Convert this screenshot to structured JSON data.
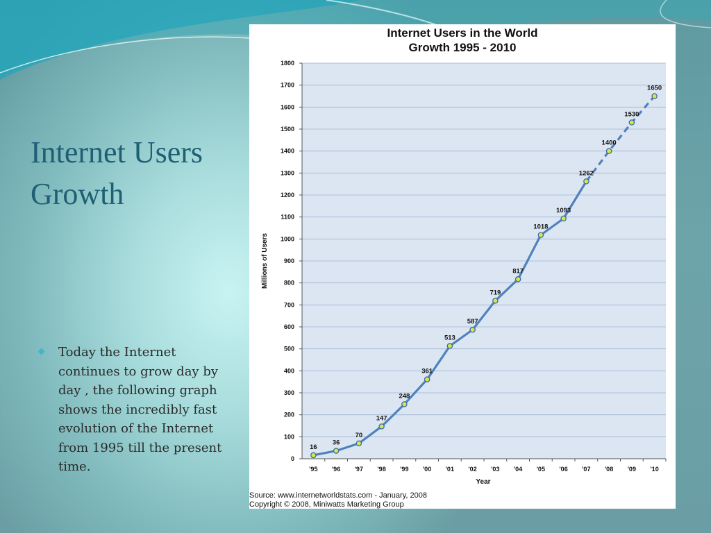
{
  "slide": {
    "title_line1": "Internet Users",
    "title_line2": "Growth",
    "bullet": "Today the Internet continues to grow day by day , the following graph shows the incredibly fast evolution of the Internet from 1995 till the present time."
  },
  "colors": {
    "accent": "#1f5f74",
    "line": "#4f81bd",
    "plot_bg": "#dce6f2",
    "marker_fill": "#d4e84a"
  },
  "chart_data": {
    "type": "line",
    "title_line1": "Internet Users in the World",
    "title_line2": "Growth 1995 - 2010",
    "xlabel": "Year",
    "ylabel": "Millions of Users",
    "categories": [
      "'95",
      "'96",
      "'97",
      "'98",
      "'99",
      "'00",
      "'01",
      "'02",
      "'03",
      "'04",
      "'05",
      "'06",
      "'07",
      "'08",
      "'09",
      "'10"
    ],
    "values": [
      16,
      36,
      70,
      147,
      248,
      361,
      513,
      587,
      719,
      817,
      1018,
      1093,
      1262,
      1400,
      1530,
      1650
    ],
    "data_labels": [
      "16",
      "36",
      "70",
      "147",
      "248",
      "361",
      "513",
      "587",
      "719",
      "817",
      "1018",
      "1093",
      "1262",
      "1400",
      "1530",
      "1650"
    ],
    "projected_from_index": 12,
    "ylim": [
      0,
      1800
    ],
    "yticks": [
      0,
      100,
      200,
      300,
      400,
      500,
      600,
      700,
      800,
      900,
      1000,
      1100,
      1200,
      1300,
      1400,
      1500,
      1600,
      1700,
      1800
    ],
    "grid": true,
    "legend": "none",
    "source_line": "Source: www.internetworldstats.com - January, 2008",
    "copyright_line": "Copyright © 2008, Miniwatts Marketing Group"
  }
}
